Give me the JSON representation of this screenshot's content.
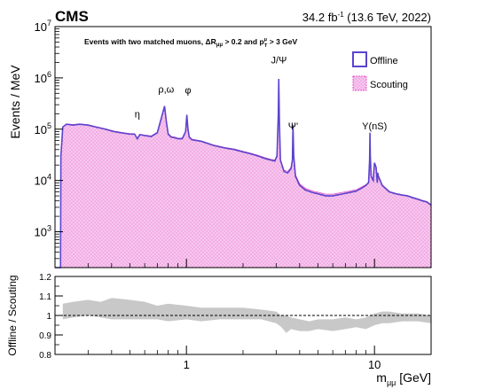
{
  "header": {
    "experiment": "CMS",
    "lumi": "34.2 fb",
    "lumi_exp": "-1",
    "energy_year": " (13.6 TeV, 2022)"
  },
  "colors": {
    "offline": "#5b43cf",
    "scouting_fill": "#f7c6ee",
    "scouting_dots": "#e257c4",
    "ratio_band": "#c8c8c8"
  },
  "chart_data": [
    {
      "type": "area",
      "title": "",
      "cuts_label": {
        "prefix": "Events with two matched muons, ",
        "dr": "ΔR",
        "dr_sub": "μμ",
        "dr_rel": " > 0.2 and ",
        "pt": "p",
        "pt_sup": "μ",
        "pt_sub": "T",
        "pt_rel": " > 3 GeV"
      },
      "xlabel": "",
      "ylabel": "Events / MeV",
      "xscale": "log",
      "yscale": "log",
      "xlim": [
        0.2,
        20
      ],
      "ylim": [
        200,
        10000000
      ],
      "y_ticks": [
        {
          "value": 1000,
          "exp": "3"
        },
        {
          "value": 10000,
          "exp": "4"
        },
        {
          "value": 100000,
          "exp": "5"
        },
        {
          "value": 1000000,
          "exp": "6"
        },
        {
          "value": 10000000,
          "exp": "7"
        }
      ],
      "legend": {
        "placement": "top-right",
        "entries": [
          "Offline",
          "Scouting"
        ]
      },
      "annotations": [
        {
          "text": "η",
          "x": 0.548,
          "y": 170000
        },
        {
          "text": "ρ,ω",
          "x": 0.78,
          "y": 520000
        },
        {
          "text": "φ",
          "x": 1.02,
          "y": 500000
        },
        {
          "text": "J/Ψ",
          "x": 3.1,
          "y": 1900000
        },
        {
          "text": "Ψ'",
          "x": 3.69,
          "y": 100000
        },
        {
          "text": "Υ(nS)",
          "x": 10.0,
          "y": 100000
        }
      ],
      "series": [
        {
          "name": "Offline",
          "x": [
            0.2,
            0.214,
            0.215,
            0.22,
            0.23,
            0.25,
            0.27,
            0.3,
            0.33,
            0.37,
            0.41,
            0.45,
            0.5,
            0.53,
            0.548,
            0.565,
            0.6,
            0.65,
            0.7,
            0.74,
            0.765,
            0.782,
            0.8,
            0.83,
            0.87,
            0.9,
            0.95,
            0.99,
            1.005,
            1.019,
            1.035,
            1.07,
            1.2,
            1.4,
            1.6,
            1.8,
            2.0,
            2.2,
            2.4,
            2.6,
            2.8,
            2.95,
            3.03,
            3.08,
            3.097,
            3.12,
            3.16,
            3.3,
            3.45,
            3.6,
            3.66,
            3.686,
            3.72,
            3.8,
            4.0,
            4.3,
            4.7,
            5.0,
            5.5,
            6.0,
            6.5,
            7.0,
            7.5,
            8.0,
            8.5,
            9.0,
            9.3,
            9.42,
            9.46,
            9.5,
            9.6,
            9.85,
            9.9,
            10.0,
            10.2,
            10.35,
            10.4,
            10.5,
            11.0,
            12.0,
            13.0,
            14.0,
            15.0,
            16.0,
            17.0,
            18.0,
            19.0,
            20.0
          ],
          "y": [
            200,
            200,
            30000,
            110000,
            125000,
            120000,
            125000,
            120000,
            110000,
            100000,
            90000,
            85000,
            80000,
            80000,
            65000,
            78000,
            75000,
            72000,
            85000,
            180000,
            280000,
            140000,
            80000,
            70000,
            68000,
            65000,
            65000,
            90000,
            190000,
            100000,
            70000,
            62000,
            58000,
            48000,
            43000,
            40000,
            36000,
            33000,
            30000,
            27000,
            25000,
            24000,
            30000,
            200000,
            950000,
            150000,
            25000,
            15000,
            14000,
            17000,
            25000,
            120000,
            30000,
            12000,
            8000,
            6500,
            5800,
            5500,
            5000,
            5000,
            5300,
            5600,
            5900,
            6200,
            7000,
            8000,
            9000,
            25000,
            85000,
            30000,
            12000,
            10000,
            14000,
            22000,
            18000,
            9000,
            14000,
            12000,
            8000,
            6000,
            5500,
            5200,
            5000,
            4600,
            4300,
            4000,
            3800,
            3300
          ]
        },
        {
          "name": "Scouting",
          "x": [
            0.2,
            0.214,
            0.215,
            0.22,
            0.23,
            0.25,
            0.27,
            0.3,
            0.33,
            0.37,
            0.41,
            0.45,
            0.5,
            0.53,
            0.548,
            0.565,
            0.6,
            0.65,
            0.7,
            0.74,
            0.765,
            0.782,
            0.8,
            0.83,
            0.87,
            0.9,
            0.95,
            0.99,
            1.005,
            1.019,
            1.035,
            1.07,
            1.2,
            1.4,
            1.6,
            1.8,
            2.0,
            2.2,
            2.4,
            2.6,
            2.8,
            2.95,
            3.03,
            3.08,
            3.097,
            3.12,
            3.16,
            3.3,
            3.45,
            3.6,
            3.66,
            3.686,
            3.72,
            3.8,
            4.0,
            4.3,
            4.7,
            5.0,
            5.5,
            6.0,
            6.5,
            7.0,
            7.5,
            8.0,
            8.5,
            9.0,
            9.3,
            9.42,
            9.46,
            9.5,
            9.6,
            9.85,
            9.9,
            10.0,
            10.2,
            10.35,
            10.4,
            10.5,
            11.0,
            12.0,
            13.0,
            14.0,
            15.0,
            16.0,
            17.0,
            18.0,
            19.0,
            20.0
          ],
          "y": [
            200,
            200,
            30000,
            112000,
            127000,
            123000,
            127000,
            122000,
            112000,
            102000,
            92000,
            87000,
            82000,
            82000,
            67000,
            80000,
            77000,
            74000,
            87000,
            182000,
            285000,
            143000,
            82000,
            72000,
            70000,
            67000,
            67000,
            92000,
            193000,
            102000,
            72000,
            64000,
            59000,
            49000,
            44000,
            41000,
            37000,
            34000,
            31000,
            28000,
            26000,
            25000,
            31000,
            205000,
            960000,
            152000,
            26000,
            16000,
            15000,
            18000,
            26000,
            122000,
            31000,
            13000,
            8600,
            7000,
            6200,
            5900,
            5400,
            5400,
            5700,
            6000,
            6300,
            6600,
            7400,
            8300,
            9300,
            25500,
            86000,
            30500,
            12400,
            10300,
            14300,
            22400,
            18300,
            9200,
            14300,
            12300,
            8200,
            6100,
            5600,
            5300,
            5100,
            4700,
            4400,
            4100,
            3900,
            3400
          ]
        }
      ]
    },
    {
      "type": "area",
      "title": "",
      "xlabel": "m",
      "xlabel_sub": "μμ",
      "xlabel_unit": " [GeV]",
      "ylabel": "Offline / Scouting",
      "xscale": "log",
      "xlim": [
        0.2,
        20
      ],
      "ylim": [
        0.8,
        1.2
      ],
      "y_ticks": [
        "0.8",
        "0.9",
        "1",
        "1.1",
        "1.2"
      ],
      "x_ticks": [
        {
          "value": 1,
          "label": "1"
        },
        {
          "value": 10,
          "label": "10"
        }
      ],
      "reference_line": 1.0,
      "series": [
        {
          "name": "Offline / Scouting",
          "x": [
            0.22,
            0.25,
            0.3,
            0.35,
            0.4,
            0.5,
            0.6,
            0.7,
            0.8,
            1.0,
            1.2,
            1.5,
            2.0,
            2.5,
            3.0,
            3.2,
            3.4,
            3.6,
            4.0,
            4.5,
            5.0,
            6.0,
            7.0,
            8.0,
            9.0,
            10.0,
            11.0,
            12.0,
            14.0,
            17.0,
            20.0
          ],
          "low": [
            0.98,
            0.99,
            1.0,
            0.99,
            0.98,
            0.98,
            0.98,
            0.98,
            0.97,
            0.98,
            0.97,
            0.98,
            0.98,
            0.98,
            0.96,
            0.94,
            0.91,
            0.93,
            0.92,
            0.92,
            0.93,
            0.92,
            0.93,
            0.94,
            0.93,
            0.95,
            0.96,
            0.96,
            0.97,
            0.97,
            0.96
          ],
          "high": [
            1.06,
            1.07,
            1.08,
            1.07,
            1.09,
            1.08,
            1.07,
            1.05,
            1.06,
            1.05,
            1.04,
            1.04,
            1.04,
            1.03,
            1.02,
            1.0,
            1.0,
            0.99,
            0.98,
            0.97,
            0.98,
            0.98,
            0.99,
            0.98,
            0.99,
            1.01,
            1.02,
            1.02,
            1.01,
            1.01,
            1.0
          ]
        }
      ]
    }
  ]
}
